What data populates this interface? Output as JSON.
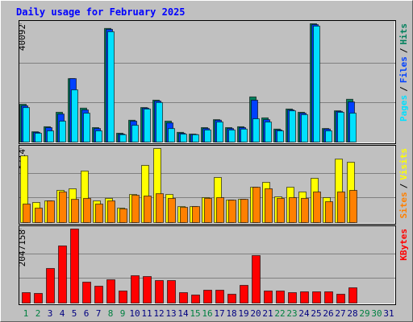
{
  "chart_data": [
    {
      "type": "bar",
      "title": "Daily usage for February 2025",
      "legend_separator": "/",
      "ylim": [
        0,
        40092
      ],
      "yticks": [
        40092
      ],
      "series": [
        {
          "name": "Hits",
          "color": "#00805c",
          "values": [
            12800,
            3500,
            5200,
            10100,
            21500,
            11500,
            4900,
            38500,
            3000,
            7400,
            11700,
            14200,
            7100,
            3300,
            2700,
            4900,
            7600,
            4900,
            5200,
            15300,
            8200,
            4400,
            11200,
            10100,
            40092,
            4600,
            10600,
            14500,
            null,
            null,
            null
          ]
        },
        {
          "name": "Files",
          "color": "#0040ff",
          "values": [
            12300,
            3300,
            4900,
            9500,
            21500,
            10900,
            4600,
            38200,
            2700,
            7100,
            11500,
            13900,
            6500,
            3000,
            2600,
            4600,
            7400,
            4600,
            4900,
            14200,
            7600,
            4100,
            10900,
            9800,
            39800,
            4400,
            10400,
            13600,
            null,
            null,
            null
          ]
        },
        {
          "name": "Pages",
          "color": "#00e0ff",
          "values": [
            11700,
            3000,
            3800,
            7100,
            17700,
            9800,
            3800,
            37400,
            2500,
            5700,
            11200,
            13400,
            4600,
            2700,
            2500,
            4100,
            6800,
            4100,
            4400,
            7900,
            6800,
            3800,
            10600,
            9300,
            39300,
            3800,
            10100,
            9800,
            null,
            null,
            null
          ]
        }
      ]
    },
    {
      "type": "bar",
      "ylim": [
        0,
        4714
      ],
      "yticks": [
        4714
      ],
      "series": [
        {
          "name": "Visits",
          "color": "#ffff00",
          "values": [
            4250,
            1280,
            1380,
            2050,
            2150,
            3280,
            1380,
            1540,
            920,
            1790,
            3640,
            4714,
            1790,
            1020,
            1020,
            1590,
            2870,
            1430,
            1480,
            2250,
            2560,
            1640,
            2250,
            1950,
            2820,
            1590,
            4040,
            3840,
            null,
            null,
            null
          ]
        },
        {
          "name": "Sites",
          "color": "#ff8000",
          "values": [
            1180,
            920,
            1380,
            1950,
            1480,
            1540,
            1180,
            1380,
            870,
            1740,
            1690,
            1840,
            1540,
            970,
            1020,
            1540,
            1590,
            1430,
            1480,
            2250,
            2150,
            1540,
            1590,
            1540,
            1950,
            1330,
            1950,
            2050,
            null,
            null,
            null
          ]
        }
      ]
    },
    {
      "type": "bar",
      "ylim": [
        0,
        2047158
      ],
      "yticks": [
        2047158
      ],
      "categories": [
        "1",
        "2",
        "3",
        "4",
        "5",
        "6",
        "7",
        "8",
        "9",
        "10",
        "11",
        "12",
        "13",
        "14",
        "15",
        "16",
        "17",
        "18",
        "19",
        "20",
        "21",
        "22",
        "23",
        "24",
        "25",
        "26",
        "27",
        "28",
        "29",
        "30",
        "31"
      ],
      "category_colors": [
        "#008040",
        "#008040",
        "#000080",
        "#000080",
        "#000080",
        "#000080",
        "#000080",
        "#008040",
        "#008040",
        "#000080",
        "#000080",
        "#000080",
        "#000080",
        "#000080",
        "#008040",
        "#008040",
        "#000080",
        "#000080",
        "#000080",
        "#000080",
        "#000080",
        "#008040",
        "#008040",
        "#000080",
        "#000080",
        "#000080",
        "#000080",
        "#000080",
        "#008040",
        "#008040",
        "#000080"
      ],
      "series": [
        {
          "name": "KBytes",
          "color": "#ff0000",
          "values": [
            289000,
            267000,
            957000,
            1580000,
            2047158,
            579000,
            467000,
            645000,
            334000,
            757000,
            734000,
            623000,
            623000,
            289000,
            223000,
            356000,
            356000,
            245000,
            490000,
            1313000,
            334000,
            334000,
            289000,
            312000,
            312000,
            312000,
            245000,
            423000,
            null,
            null,
            null
          ]
        }
      ]
    }
  ]
}
